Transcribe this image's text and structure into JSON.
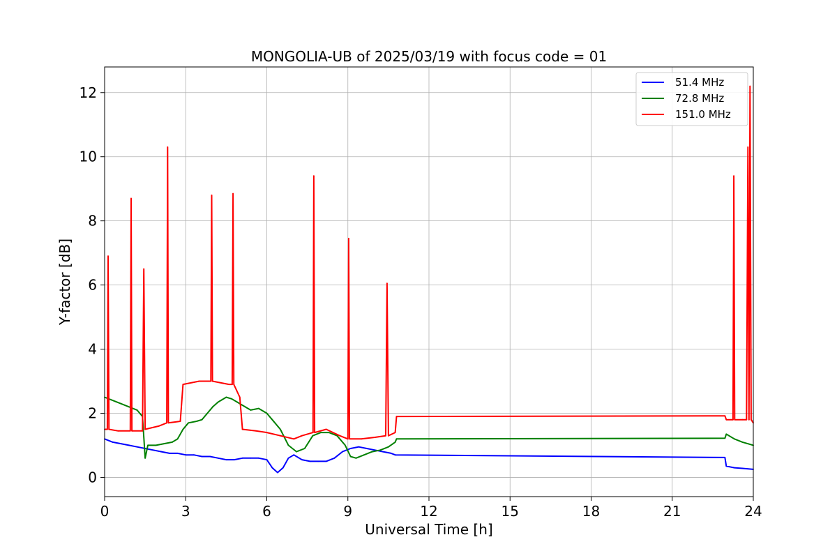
{
  "chart_data": {
    "type": "line",
    "title": "MONGOLIA-UB of 2025/03/19 with focus code = 01",
    "xlabel": "Universal Time [h]",
    "ylabel": "Y-factor [dB]",
    "xlim": [
      0,
      24
    ],
    "ylim": [
      -0.6,
      12.8
    ],
    "xticks": [
      0,
      3,
      6,
      9,
      12,
      15,
      18,
      21,
      24
    ],
    "yticks": [
      0,
      2,
      4,
      6,
      8,
      10,
      12
    ],
    "grid": true,
    "legend_position": "top-right",
    "series": [
      {
        "name": "  51.4 MHz",
        "color": "#0000ff",
        "points": [
          [
            0.0,
            1.2
          ],
          [
            0.3,
            1.1
          ],
          [
            0.6,
            1.05
          ],
          [
            0.9,
            1.0
          ],
          [
            1.2,
            0.95
          ],
          [
            1.5,
            0.9
          ],
          [
            1.8,
            0.85
          ],
          [
            2.1,
            0.8
          ],
          [
            2.4,
            0.75
          ],
          [
            2.7,
            0.75
          ],
          [
            3.0,
            0.7
          ],
          [
            3.3,
            0.7
          ],
          [
            3.6,
            0.65
          ],
          [
            3.9,
            0.65
          ],
          [
            4.2,
            0.6
          ],
          [
            4.5,
            0.55
          ],
          [
            4.8,
            0.55
          ],
          [
            5.1,
            0.6
          ],
          [
            5.4,
            0.6
          ],
          [
            5.7,
            0.6
          ],
          [
            6.0,
            0.55
          ],
          [
            6.2,
            0.3
          ],
          [
            6.4,
            0.15
          ],
          [
            6.6,
            0.3
          ],
          [
            6.8,
            0.6
          ],
          [
            7.0,
            0.7
          ],
          [
            7.3,
            0.55
          ],
          [
            7.6,
            0.5
          ],
          [
            7.9,
            0.5
          ],
          [
            8.2,
            0.5
          ],
          [
            8.5,
            0.6
          ],
          [
            8.8,
            0.8
          ],
          [
            9.1,
            0.9
          ],
          [
            9.4,
            0.95
          ],
          [
            9.7,
            0.9
          ],
          [
            10.0,
            0.85
          ],
          [
            10.3,
            0.8
          ],
          [
            10.6,
            0.75
          ],
          [
            10.75,
            0.7
          ],
          [
            22.95,
            0.62
          ],
          [
            23.0,
            0.35
          ],
          [
            23.3,
            0.3
          ],
          [
            23.6,
            0.28
          ],
          [
            24.0,
            0.25
          ]
        ]
      },
      {
        "name": "  72.8 MHz",
        "color": "#008000",
        "points": [
          [
            0.0,
            2.5
          ],
          [
            0.3,
            2.4
          ],
          [
            0.6,
            2.3
          ],
          [
            0.9,
            2.2
          ],
          [
            1.2,
            2.1
          ],
          [
            1.4,
            1.9
          ],
          [
            1.5,
            0.6
          ],
          [
            1.6,
            1.0
          ],
          [
            1.9,
            1.0
          ],
          [
            2.2,
            1.05
          ],
          [
            2.5,
            1.1
          ],
          [
            2.7,
            1.2
          ],
          [
            2.9,
            1.5
          ],
          [
            3.1,
            1.7
          ],
          [
            3.4,
            1.75
          ],
          [
            3.6,
            1.8
          ],
          [
            3.8,
            2.0
          ],
          [
            4.0,
            2.2
          ],
          [
            4.2,
            2.35
          ],
          [
            4.5,
            2.5
          ],
          [
            4.7,
            2.45
          ],
          [
            4.9,
            2.35
          ],
          [
            5.1,
            2.25
          ],
          [
            5.4,
            2.1
          ],
          [
            5.7,
            2.15
          ],
          [
            6.0,
            2.0
          ],
          [
            6.2,
            1.8
          ],
          [
            6.5,
            1.5
          ],
          [
            6.8,
            1.0
          ],
          [
            7.1,
            0.8
          ],
          [
            7.4,
            0.9
          ],
          [
            7.7,
            1.3
          ],
          [
            8.0,
            1.4
          ],
          [
            8.3,
            1.4
          ],
          [
            8.6,
            1.3
          ],
          [
            8.9,
            1.0
          ],
          [
            9.1,
            0.65
          ],
          [
            9.3,
            0.6
          ],
          [
            9.6,
            0.7
          ],
          [
            9.9,
            0.8
          ],
          [
            10.2,
            0.85
          ],
          [
            10.5,
            0.95
          ],
          [
            10.75,
            1.1
          ],
          [
            10.8,
            1.2
          ],
          [
            22.95,
            1.22
          ],
          [
            23.0,
            1.35
          ],
          [
            23.3,
            1.2
          ],
          [
            23.6,
            1.1
          ],
          [
            24.0,
            1.0
          ]
        ]
      },
      {
        "name": " 151.0 MHz",
        "color": "#ff0000",
        "points": [
          [
            0.0,
            1.5
          ],
          [
            0.1,
            1.5
          ],
          [
            0.13,
            6.9
          ],
          [
            0.16,
            1.5
          ],
          [
            0.5,
            1.45
          ],
          [
            0.95,
            1.45
          ],
          [
            0.98,
            8.7
          ],
          [
            1.01,
            1.45
          ],
          [
            1.4,
            1.45
          ],
          [
            1.45,
            6.5
          ],
          [
            1.5,
            1.5
          ],
          [
            2.0,
            1.6
          ],
          [
            2.3,
            1.7
          ],
          [
            2.33,
            10.3
          ],
          [
            2.36,
            1.7
          ],
          [
            2.8,
            1.75
          ],
          [
            2.9,
            2.9
          ],
          [
            3.5,
            3.0
          ],
          [
            3.93,
            3.0
          ],
          [
            3.96,
            8.8
          ],
          [
            3.99,
            3.0
          ],
          [
            4.6,
            2.9
          ],
          [
            4.72,
            2.9
          ],
          [
            4.75,
            8.85
          ],
          [
            4.78,
            2.9
          ],
          [
            5.0,
            2.5
          ],
          [
            5.1,
            1.5
          ],
          [
            5.6,
            1.45
          ],
          [
            6.0,
            1.4
          ],
          [
            6.5,
            1.3
          ],
          [
            7.0,
            1.2
          ],
          [
            7.3,
            1.3
          ],
          [
            7.71,
            1.4
          ],
          [
            7.74,
            9.4
          ],
          [
            7.77,
            1.4
          ],
          [
            8.2,
            1.5
          ],
          [
            8.7,
            1.3
          ],
          [
            9.0,
            1.2
          ],
          [
            9.03,
            7.45
          ],
          [
            9.06,
            1.2
          ],
          [
            9.5,
            1.2
          ],
          [
            10.0,
            1.25
          ],
          [
            10.4,
            1.3
          ],
          [
            10.45,
            6.05
          ],
          [
            10.5,
            1.3
          ],
          [
            10.75,
            1.4
          ],
          [
            10.8,
            1.9
          ],
          [
            22.95,
            1.92
          ],
          [
            23.0,
            1.8
          ],
          [
            23.25,
            1.8
          ],
          [
            23.28,
            9.4
          ],
          [
            23.31,
            1.8
          ],
          [
            23.6,
            1.8
          ],
          [
            23.75,
            1.8
          ],
          [
            23.8,
            10.3
          ],
          [
            23.84,
            1.8
          ],
          [
            23.88,
            12.2
          ],
          [
            23.92,
            1.8
          ],
          [
            24.0,
            1.7
          ]
        ]
      }
    ]
  }
}
